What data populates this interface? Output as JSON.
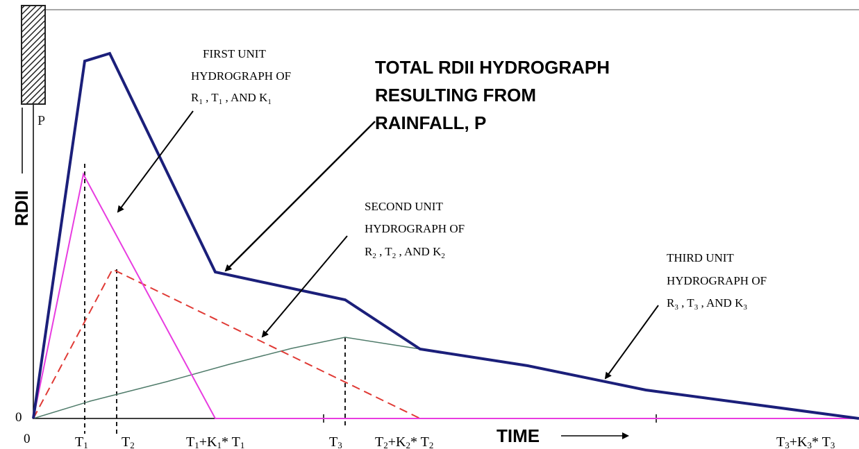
{
  "colors": {
    "total": "#1b1f7a",
    "first": "#e83ce0",
    "second": "#e03a35",
    "third": "#4f7b6a",
    "axis": "#000000",
    "frame": "#888888"
  },
  "rainfall": {
    "label": "P"
  },
  "axes": {
    "ylabel": "RDII",
    "xlabel": "TIME",
    "origin_y": "0",
    "origin_x": "0"
  },
  "ticks": [
    {
      "main": "T",
      "sub": "1",
      "rest": ""
    },
    {
      "main": "T",
      "sub": "2",
      "rest": ""
    },
    {
      "main": "T",
      "sub": "1",
      "rest": "+K",
      "sub2": "1",
      "tail": "* T",
      "sub3": "1"
    },
    {
      "main": "T",
      "sub": "3",
      "rest": ""
    },
    {
      "main": "T",
      "sub": "2",
      "rest": "+K",
      "sub2": "2",
      "tail": "* T",
      "sub3": "2"
    },
    {
      "main": "T",
      "sub": "3",
      "rest": "+K",
      "sub2": "3",
      "tail": "* T",
      "sub3": "3"
    }
  ],
  "annotations": {
    "total": [
      "TOTAL RDII HYDROGRAPH",
      "RESULTING FROM",
      "RAINFALL, P"
    ],
    "first": {
      "line1": "FIRST UNIT",
      "line2": "HYDROGRAPH OF",
      "r": "R",
      "t": "T",
      "k": "K",
      "and": "AND",
      "idx": "1"
    },
    "second": {
      "line1": "SECOND UNIT",
      "line2": "HYDROGRAPH OF",
      "r": "R",
      "t": "T",
      "k": "K",
      "and": "AND",
      "idx": "2"
    },
    "third": {
      "line1": "THIRD UNIT",
      "line2": "HYDROGRAPH OF",
      "r": "R",
      "t": "T",
      "k": "K",
      "and": "AND",
      "idx": "3"
    }
  }
}
